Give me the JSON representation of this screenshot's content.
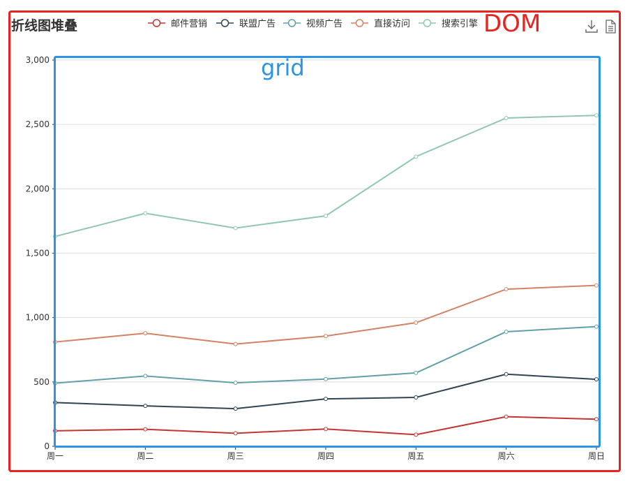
{
  "title": "折线图堆叠",
  "dom_label": "DOM",
  "grid_label": "grid",
  "toolbox": {
    "save_icon": "download-icon",
    "data_view_icon": "document-icon"
  },
  "chart_data": {
    "type": "line",
    "stacked": true,
    "title": "折线图堆叠",
    "categories": [
      "周一",
      "周二",
      "周三",
      "周四",
      "周五",
      "周六",
      "周日"
    ],
    "series": [
      {
        "name": "邮件营销",
        "color": "#c23531",
        "values": [
          120,
          132,
          101,
          134,
          90,
          230,
          210
        ]
      },
      {
        "name": "联盟广告",
        "color": "#2f4554",
        "values": [
          220,
          182,
          191,
          234,
          290,
          330,
          310
        ]
      },
      {
        "name": "视频广告",
        "color": "#61a0a8",
        "values": [
          150,
          232,
          201,
          154,
          190,
          330,
          410
        ]
      },
      {
        "name": "直接访问",
        "color": "#d48265",
        "values": [
          320,
          332,
          301,
          334,
          390,
          330,
          320
        ]
      },
      {
        "name": "搜索引擎",
        "color": "#91c7ae",
        "values": [
          820,
          932,
          901,
          934,
          1290,
          1330,
          1320
        ]
      }
    ],
    "ylim": [
      0,
      3000
    ],
    "yticks": [
      0,
      500,
      1000,
      1500,
      2000,
      2500,
      3000
    ],
    "ytick_labels": [
      "0",
      "500",
      "1,000",
      "1,500",
      "2,000",
      "2,500",
      "3,000"
    ],
    "grid": true,
    "legend_position": "top"
  }
}
